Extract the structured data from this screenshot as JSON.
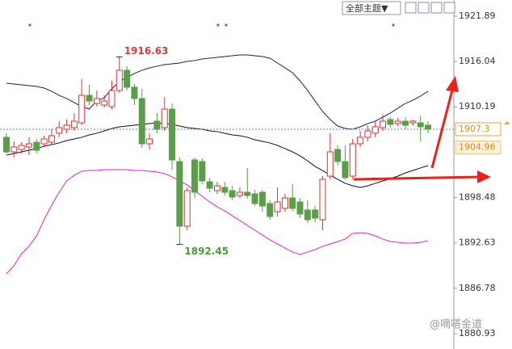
{
  "toolbar": {
    "theme_menu": "全部主题▼"
  },
  "watermark": "@嘀嗒金道",
  "chart_data": {
    "type": "candlestick",
    "ylim": [
      1878.95,
      1923.97
    ],
    "yticks": [
      1921.89,
      1916.04,
      1910.19,
      1898.48,
      1892.63,
      1886.78,
      1880.93
    ],
    "up_color": "#e03030",
    "down_color": "#5a9e4a",
    "last_price": 1907.3,
    "second_price": 1904.96,
    "max_label": 1916.63,
    "min_label": 1892.45,
    "candles": {
      "open": [
        1906.26,
        1904.38,
        1904.69,
        1905.01,
        1905.63,
        1905.42,
        1905.63,
        1906.78,
        1907.3,
        1907.51,
        1908.13,
        1911.67,
        1910.63,
        1910.42,
        1910.22,
        1912.3,
        1914.9,
        1912.72,
        1911.26,
        1905.42,
        1908.34,
        1907.51,
        1909.9,
        1903.13,
        1894.79,
        1903.34,
        1903.13,
        1900.52,
        1899.38,
        1899.8,
        1899.38,
        1898.75,
        1899.17,
        1898.96,
        1899.17,
        1897.71,
        1896.67,
        1897.09,
        1898.44,
        1897.92,
        1896.88,
        1896.88,
        1895.63,
        1901.25,
        1904.69,
        1903.13,
        1901.25,
        1905.42,
        1906.26,
        1906.78,
        1907.51,
        1908.55,
        1908.03,
        1908.34,
        1908.13,
        1908.13,
        1907.82
      ],
      "high": [
        1906.78,
        1905.73,
        1905.63,
        1906.26,
        1906.05,
        1906.46,
        1907.3,
        1908.34,
        1908.55,
        1909.38,
        1913.76,
        1913.03,
        1912.3,
        1911.67,
        1913.55,
        1916.63,
        1915.43,
        1913.13,
        1912.51,
        1906.78,
        1909.38,
        1911.47,
        1910.63,
        1903.65,
        1899.8,
        1903.65,
        1903.55,
        1901.05,
        1900.52,
        1900.52,
        1900.0,
        1899.8,
        1902.3,
        1899.48,
        1899.48,
        1898.13,
        1899.8,
        1898.96,
        1900.21,
        1898.44,
        1898.13,
        1897.4,
        1901.25,
        1906.78,
        1905.21,
        1905.21,
        1906.05,
        1907.09,
        1907.82,
        1908.34,
        1909.17,
        1908.86,
        1908.76,
        1908.86,
        1908.55,
        1909.07,
        1908.34
      ],
      "low": [
        1904.17,
        1903.65,
        1904.17,
        1903.96,
        1904.17,
        1905.01,
        1905.42,
        1906.26,
        1906.78,
        1907.09,
        1907.82,
        1910.42,
        1910.22,
        1910.11,
        1909.9,
        1911.99,
        1912.3,
        1910.42,
        1904.9,
        1904.69,
        1906.78,
        1907.09,
        1902.09,
        1892.45,
        1894.27,
        1898.44,
        1900.21,
        1899.17,
        1898.96,
        1898.75,
        1898.13,
        1898.44,
        1898.34,
        1897.4,
        1896.67,
        1895.63,
        1896.04,
        1896.67,
        1896.67,
        1895.84,
        1895.21,
        1895.31,
        1894.27,
        1900.84,
        1902.61,
        1900.84,
        1900.84,
        1905.01,
        1905.73,
        1906.26,
        1907.09,
        1907.51,
        1907.71,
        1907.3,
        1907.71,
        1905.73,
        1906.78
      ],
      "close": [
        1904.38,
        1905.01,
        1905.21,
        1905.42,
        1904.59,
        1906.05,
        1906.46,
        1907.51,
        1907.82,
        1908.34,
        1911.67,
        1910.94,
        1911.26,
        1910.94,
        1912.3,
        1914.9,
        1912.72,
        1911.26,
        1905.42,
        1906.05,
        1907.3,
        1909.9,
        1903.34,
        1894.79,
        1899.38,
        1899.17,
        1900.63,
        1899.69,
        1900.0,
        1899.17,
        1898.55,
        1899.17,
        1898.75,
        1897.71,
        1897.4,
        1896.04,
        1897.92,
        1898.44,
        1897.09,
        1896.36,
        1895.63,
        1895.84,
        1900.84,
        1904.38,
        1903.13,
        1901.05,
        1905.42,
        1906.26,
        1907.09,
        1907.61,
        1908.34,
        1907.92,
        1908.34,
        1907.82,
        1908.34,
        1907.61,
        1907.3
      ]
    },
    "bands": [
      {
        "color": "#1c1c78",
        "values": [
          1913.24,
          1913.13,
          1913.03,
          1912.92,
          1912.82,
          1912.61,
          1912.2,
          1911.67,
          1911.26,
          1910.74,
          1910.22,
          1909.9,
          1910.94,
          1911.36,
          1912.51,
          1913.45,
          1913.97,
          1914.49,
          1914.9,
          1915.22,
          1915.43,
          1915.63,
          1915.74,
          1915.84,
          1916.05,
          1916.16,
          1916.36,
          1916.47,
          1916.57,
          1916.68,
          1916.78,
          1916.88,
          1916.88,
          1916.78,
          1916.68,
          1916.47,
          1915.84,
          1915.22,
          1914.59,
          1913.55,
          1912.3,
          1910.94,
          1909.59,
          1908.55,
          1907.71,
          1907.4,
          1907.3,
          1907.61,
          1908.03,
          1908.34,
          1908.86,
          1909.38,
          1910.01,
          1910.63,
          1911.05,
          1911.57,
          1912.2
        ]
      },
      {
        "color": "#111111",
        "values": [
          1903.96,
          1904.17,
          1904.38,
          1904.59,
          1904.8,
          1905.11,
          1905.32,
          1905.53,
          1905.84,
          1906.05,
          1906.26,
          1906.57,
          1906.78,
          1907.09,
          1907.4,
          1907.61,
          1907.71,
          1907.82,
          1907.92,
          1908.03,
          1908.13,
          1908.03,
          1907.92,
          1907.71,
          1907.51,
          1907.4,
          1907.3,
          1907.09,
          1906.99,
          1906.78,
          1906.57,
          1906.46,
          1906.26,
          1905.94,
          1905.73,
          1905.53,
          1905.21,
          1904.8,
          1904.38,
          1903.86,
          1903.23,
          1902.5,
          1901.98,
          1901.36,
          1900.84,
          1900.32,
          1900.0,
          1899.8,
          1900.0,
          1900.32,
          1900.63,
          1900.94,
          1901.25,
          1901.67,
          1901.98,
          1902.3,
          1902.61
        ]
      },
      {
        "color": "#e020e0",
        "values": [
          1888.65,
          1889.69,
          1891.25,
          1892.19,
          1893.54,
          1895.63,
          1897.5,
          1899.17,
          1900.63,
          1901.36,
          1901.88,
          1901.98,
          1901.98,
          1902.09,
          1902.09,
          1902.09,
          1902.09,
          1901.98,
          1901.98,
          1901.88,
          1901.78,
          1901.57,
          1901.15,
          1900.63,
          1900.11,
          1899.38,
          1898.65,
          1897.92,
          1897.3,
          1896.77,
          1896.15,
          1895.52,
          1894.9,
          1894.27,
          1893.65,
          1893.02,
          1892.5,
          1891.98,
          1891.46,
          1891.15,
          1891.46,
          1891.77,
          1892.19,
          1892.5,
          1892.81,
          1893.13,
          1893.86,
          1893.96,
          1893.86,
          1893.54,
          1893.13,
          1892.81,
          1892.71,
          1892.6,
          1892.6,
          1892.71,
          1892.92
        ]
      }
    ]
  }
}
